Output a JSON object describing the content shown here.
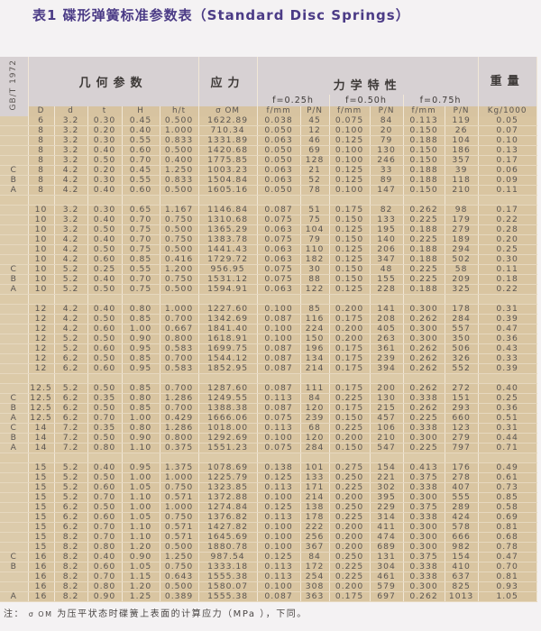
{
  "title": "表1  碟形弹簧标准参数表（Standard Disc Springs）",
  "header": {
    "standard": "GB/T 1972",
    "geometry": "几何参数",
    "stress": "应力",
    "mechanical": "力学特性",
    "weight": "重量",
    "f025": "f=0.25h",
    "f050": "f=0.50h",
    "f075": "f=0.75h",
    "columns": [
      "D",
      "d",
      "t",
      "H",
      "h/t",
      "σ OM",
      "f/mm",
      "P/N",
      "f/mm",
      "P/N",
      "f/mm",
      "P/N",
      "Kg/1000"
    ]
  },
  "colors": {
    "title": "#4b3b86",
    "cell": "#d9c5a1",
    "header": "#d7d1d3",
    "text": "#5a5552"
  },
  "groups": [
    [
      [
        "",
        "6",
        "3.2",
        "0.30",
        "0.45",
        "0.500",
        "1622.89",
        "0.038",
        "45",
        "0.075",
        "84",
        "0.113",
        "119",
        "0.05"
      ],
      [
        "",
        "8",
        "3.2",
        "0.20",
        "0.40",
        "1.000",
        "710.34",
        "0.050",
        "12",
        "0.100",
        "20",
        "0.150",
        "26",
        "0.07"
      ],
      [
        "",
        "8",
        "3.2",
        "0.30",
        "0.55",
        "0.833",
        "1331.89",
        "0.063",
        "46",
        "0.125",
        "79",
        "0.188",
        "104",
        "0.10"
      ],
      [
        "",
        "8",
        "3.2",
        "0.40",
        "0.60",
        "0.500",
        "1420.68",
        "0.050",
        "69",
        "0.100",
        "130",
        "0.150",
        "186",
        "0.13"
      ],
      [
        "",
        "8",
        "3.2",
        "0.50",
        "0.70",
        "0.400",
        "1775.85",
        "0.050",
        "128",
        "0.100",
        "246",
        "0.150",
        "357",
        "0.17"
      ],
      [
        "C",
        "8",
        "4.2",
        "0.20",
        "0.45",
        "1.250",
        "1003.23",
        "0.063",
        "21",
        "0.125",
        "33",
        "0.188",
        "39",
        "0.06"
      ],
      [
        "B",
        "8",
        "4.2",
        "0.30",
        "0.55",
        "0.833",
        "1504.84",
        "0.063",
        "52",
        "0.125",
        "89",
        "0.188",
        "118",
        "0.09"
      ],
      [
        "A",
        "8",
        "4.2",
        "0.40",
        "0.60",
        "0.500",
        "1605.16",
        "0.050",
        "78",
        "0.100",
        "147",
        "0.150",
        "210",
        "0.11"
      ]
    ],
    [
      [
        "",
        "10",
        "3.2",
        "0.30",
        "0.65",
        "1.167",
        "1146.84",
        "0.087",
        "51",
        "0.175",
        "82",
        "0.262",
        "98",
        "0.17"
      ],
      [
        "",
        "10",
        "3.2",
        "0.40",
        "0.70",
        "0.750",
        "1310.68",
        "0.075",
        "75",
        "0.150",
        "133",
        "0.225",
        "179",
        "0.22"
      ],
      [
        "",
        "10",
        "3.2",
        "0.50",
        "0.75",
        "0.500",
        "1365.29",
        "0.063",
        "104",
        "0.125",
        "195",
        "0.188",
        "279",
        "0.28"
      ],
      [
        "",
        "10",
        "4.2",
        "0.40",
        "0.70",
        "0.750",
        "1383.78",
        "0.075",
        "79",
        "0.150",
        "140",
        "0.225",
        "189",
        "0.20"
      ],
      [
        "",
        "10",
        "4.2",
        "0.50",
        "0.75",
        "0.500",
        "1441.43",
        "0.063",
        "110",
        "0.125",
        "206",
        "0.188",
        "294",
        "0.25"
      ],
      [
        "",
        "10",
        "4.2",
        "0.60",
        "0.85",
        "0.416",
        "1729.72",
        "0.063",
        "182",
        "0.125",
        "347",
        "0.188",
        "502",
        "0.30"
      ],
      [
        "C",
        "10",
        "5.2",
        "0.25",
        "0.55",
        "1.200",
        "956.95",
        "0.075",
        "30",
        "0.150",
        "48",
        "0.225",
        "58",
        "0.11"
      ],
      [
        "B",
        "10",
        "5.2",
        "0.40",
        "0.70",
        "0.750",
        "1531.12",
        "0.075",
        "88",
        "0.150",
        "155",
        "0.225",
        "209",
        "0.18"
      ],
      [
        "A",
        "10",
        "5.2",
        "0.50",
        "0.75",
        "0.500",
        "1594.91",
        "0.063",
        "122",
        "0.125",
        "228",
        "0.188",
        "325",
        "0.22"
      ]
    ],
    [
      [
        "",
        "12",
        "4.2",
        "0.40",
        "0.80",
        "1.000",
        "1227.60",
        "0.100",
        "85",
        "0.200",
        "141",
        "0.300",
        "178",
        "0.31"
      ],
      [
        "",
        "12",
        "4.2",
        "0.50",
        "0.85",
        "0.700",
        "1342.69",
        "0.087",
        "116",
        "0.175",
        "208",
        "0.262",
        "284",
        "0.39"
      ],
      [
        "",
        "12",
        "4.2",
        "0.60",
        "1.00",
        "0.667",
        "1841.40",
        "0.100",
        "224",
        "0.200",
        "405",
        "0.300",
        "557",
        "0.47"
      ],
      [
        "",
        "12",
        "5.2",
        "0.50",
        "0.90",
        "0.800",
        "1618.91",
        "0.100",
        "150",
        "0.200",
        "263",
        "0.300",
        "350",
        "0.36"
      ],
      [
        "",
        "12",
        "5.2",
        "0.60",
        "0.95",
        "0.583",
        "1699.75",
        "0.087",
        "196",
        "0.175",
        "361",
        "0.262",
        "506",
        "0.43"
      ],
      [
        "",
        "12",
        "6.2",
        "0.50",
        "0.85",
        "0.700",
        "1544.12",
        "0.087",
        "134",
        "0.175",
        "239",
        "0.262",
        "326",
        "0.33"
      ],
      [
        "",
        "12",
        "6.2",
        "0.60",
        "0.95",
        "0.583",
        "1852.95",
        "0.087",
        "214",
        "0.175",
        "394",
        "0.262",
        "552",
        "0.39"
      ]
    ],
    [
      [
        "",
        "12.5",
        "5.2",
        "0.50",
        "0.85",
        "0.700",
        "1287.60",
        "0.087",
        "111",
        "0.175",
        "200",
        "0.262",
        "272",
        "0.40"
      ],
      [
        "C",
        "12.5",
        "6.2",
        "0.35",
        "0.80",
        "1.286",
        "1249.55",
        "0.113",
        "84",
        "0.225",
        "130",
        "0.338",
        "151",
        "0.25"
      ],
      [
        "B",
        "12.5",
        "6.2",
        "0.50",
        "0.85",
        "0.700",
        "1388.38",
        "0.087",
        "120",
        "0.175",
        "215",
        "0.262",
        "293",
        "0.36"
      ],
      [
        "A",
        "12.5",
        "6.2",
        "0.70",
        "1.00",
        "0.429",
        "1666.06",
        "0.075",
        "239",
        "0.150",
        "457",
        "0.225",
        "660",
        "0.51"
      ],
      [
        "C",
        "14",
        "7.2",
        "0.35",
        "0.80",
        "1.286",
        "1018.00",
        "0.113",
        "68",
        "0.225",
        "106",
        "0.338",
        "123",
        "0.31"
      ],
      [
        "B",
        "14",
        "7.2",
        "0.50",
        "0.90",
        "0.800",
        "1292.69",
        "0.100",
        "120",
        "0.200",
        "210",
        "0.300",
        "279",
        "0.44"
      ],
      [
        "A",
        "14",
        "7.2",
        "0.80",
        "1.10",
        "0.375",
        "1551.23",
        "0.075",
        "284",
        "0.150",
        "547",
        "0.225",
        "797",
        "0.71"
      ]
    ],
    [
      [
        "",
        "15",
        "5.2",
        "0.40",
        "0.95",
        "1.375",
        "1078.69",
        "0.138",
        "101",
        "0.275",
        "154",
        "0.413",
        "176",
        "0.49"
      ],
      [
        "",
        "15",
        "5.2",
        "0.50",
        "1.00",
        "1.000",
        "1225.79",
        "0.125",
        "133",
        "0.250",
        "221",
        "0.375",
        "278",
        "0.61"
      ],
      [
        "",
        "15",
        "5.2",
        "0.60",
        "1.05",
        "0.750",
        "1323.85",
        "0.113",
        "171",
        "0.225",
        "302",
        "0.338",
        "407",
        "0.73"
      ],
      [
        "",
        "15",
        "5.2",
        "0.70",
        "1.10",
        "0.571",
        "1372.88",
        "0.100",
        "214",
        "0.200",
        "395",
        "0.300",
        "555",
        "0.85"
      ],
      [
        "",
        "15",
        "6.2",
        "0.50",
        "1.00",
        "1.000",
        "1274.84",
        "0.125",
        "138",
        "0.250",
        "229",
        "0.375",
        "289",
        "0.58"
      ],
      [
        "",
        "15",
        "6.2",
        "0.60",
        "1.05",
        "0.750",
        "1376.82",
        "0.113",
        "178",
        "0.225",
        "314",
        "0.338",
        "424",
        "0.69"
      ],
      [
        "",
        "15",
        "6.2",
        "0.70",
        "1.10",
        "0.571",
        "1427.82",
        "0.100",
        "222",
        "0.200",
        "411",
        "0.300",
        "578",
        "0.81"
      ],
      [
        "",
        "15",
        "8.2",
        "0.70",
        "1.10",
        "0.571",
        "1645.69",
        "0.100",
        "256",
        "0.200",
        "474",
        "0.300",
        "666",
        "0.68"
      ],
      [
        "",
        "15",
        "8.2",
        "0.80",
        "1.20",
        "0.500",
        "1880.78",
        "0.100",
        "367",
        "0.200",
        "689",
        "0.300",
        "982",
        "0.78"
      ],
      [
        "C",
        "16",
        "8.2",
        "0.40",
        "0.90",
        "1.250",
        "987.54",
        "0.125",
        "84",
        "0.250",
        "131",
        "0.375",
        "154",
        "0.47"
      ],
      [
        "B",
        "16",
        "8.2",
        "0.60",
        "1.05",
        "0.750",
        "1333.18",
        "0.113",
        "172",
        "0.225",
        "304",
        "0.338",
        "410",
        "0.70"
      ],
      [
        "",
        "16",
        "8.2",
        "0.70",
        "1.15",
        "0.643",
        "1555.38",
        "0.113",
        "254",
        "0.225",
        "461",
        "0.338",
        "637",
        "0.81"
      ],
      [
        "",
        "16",
        "8.2",
        "0.80",
        "1.20",
        "0.500",
        "1580.07",
        "0.100",
        "308",
        "0.200",
        "579",
        "0.300",
        "825",
        "0.93"
      ],
      [
        "A",
        "16",
        "8.2",
        "0.90",
        "1.25",
        "0.389",
        "1555.38",
        "0.087",
        "363",
        "0.175",
        "697",
        "0.262",
        "1013",
        "1.05"
      ]
    ]
  ],
  "note": {
    "prefix": "注：",
    "symbol": "σ OM",
    "text": "为压平状态时碟簧上表面的计算应力（MPa  ），下同。"
  }
}
